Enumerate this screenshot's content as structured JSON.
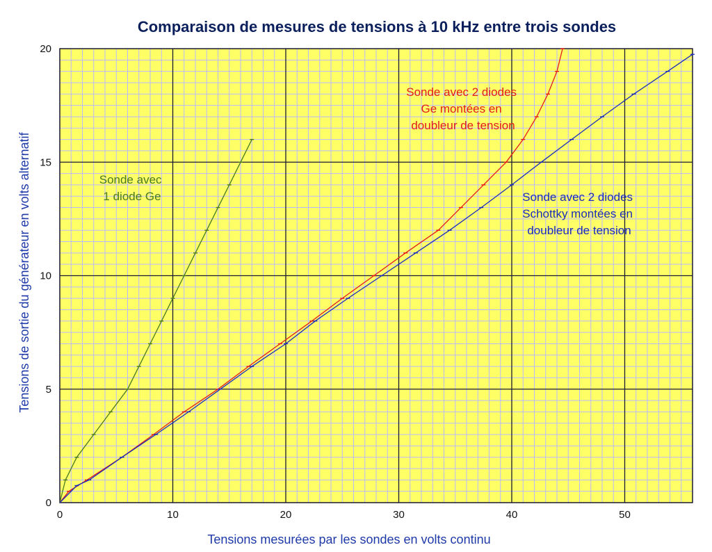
{
  "chart_data": {
    "type": "line",
    "title": "Comparaison de mesures de tensions à 10 kHz entre trois sondes",
    "xlabel": "Tensions mesurées par les sondes en volts continu",
    "ylabel": "Tensions de sortie du générateur en volts alternatif",
    "xlim": [
      0,
      56
    ],
    "ylim": [
      0,
      20
    ],
    "x_ticks": [
      0,
      10,
      20,
      30,
      40,
      50
    ],
    "y_ticks": [
      0,
      5,
      10,
      15,
      20
    ],
    "grid": true,
    "series": [
      {
        "name": "Sonde avec 1 diode Ge",
        "color": "#4a7a1f",
        "x": [
          0,
          0.5,
          1.5,
          3,
          4.5,
          6,
          7,
          8,
          9,
          10,
          11,
          12,
          13,
          14,
          15,
          16,
          17
        ],
        "y": [
          0,
          1,
          2,
          3,
          4,
          5,
          6,
          7,
          8,
          9,
          10,
          11,
          12,
          13,
          14,
          15,
          16
        ]
      },
      {
        "name": "Sonde avec 2 diodes Ge montées en doubleur de tension",
        "color": "#e31b1b",
        "x": [
          0,
          0.8,
          2.4,
          5.5,
          8.3,
          11,
          14,
          16.7,
          19.5,
          22.3,
          25,
          27.8,
          30.6,
          33.5,
          35.5,
          37.5,
          39.5,
          41,
          42.2,
          43.2,
          44,
          44.5
        ],
        "y": [
          0,
          0.5,
          1,
          2,
          3,
          4,
          5,
          6,
          7,
          8,
          9,
          10,
          11,
          12,
          13,
          14,
          15,
          16,
          17,
          18,
          19,
          20
        ]
      },
      {
        "name": "Sonde avec 2 diodes Schottky montées en doubleur de tension",
        "color": "#1a2bbd",
        "x": [
          0,
          1.5,
          2.6,
          5.5,
          8.5,
          11.4,
          14.2,
          17,
          20,
          22.6,
          25.5,
          28.5,
          31.5,
          34.5,
          37.3,
          40,
          42.6,
          45.3,
          48,
          50.8,
          53.8,
          56
        ],
        "y": [
          0,
          0.75,
          1,
          2,
          3,
          4,
          5,
          6,
          7,
          8,
          9,
          10,
          11,
          12,
          13,
          14,
          15,
          16,
          17,
          18,
          19,
          19.75
        ]
      }
    ]
  },
  "annotations": {
    "ge1": [
      "Sonde avec",
      "1 diode Ge"
    ],
    "ge2": [
      "Sonde avec 2 diodes",
      "Ge montées en",
      "doubleur de tension"
    ],
    "schottky": [
      "Sonde avec 2 diodes",
      "Schottky montées en",
      "doubleur de tension"
    ]
  },
  "colors": {
    "plot_background": "#ffff66",
    "minor_grid": "#b9b9ff",
    "major_grid": "#1a1a33"
  }
}
